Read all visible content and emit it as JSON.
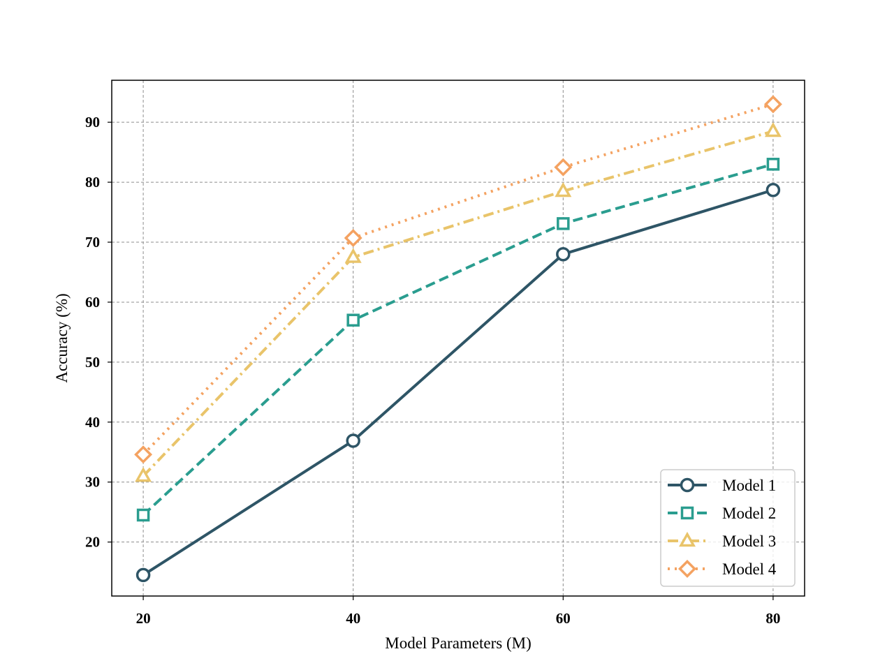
{
  "chart_data": {
    "type": "line",
    "title": "",
    "xlabel": "Model Parameters (M)",
    "ylabel": "Accuracy (%)",
    "x": [
      20,
      40,
      60,
      80
    ],
    "x_ticks": [
      "20",
      "40",
      "60",
      "80"
    ],
    "y_ticks": [
      "20",
      "30",
      "40",
      "50",
      "60",
      "70",
      "80",
      "90"
    ],
    "xlim": [
      17,
      83
    ],
    "ylim": [
      11,
      97
    ],
    "grid": true,
    "legend_position": "lower right",
    "series": [
      {
        "name": "Model 1",
        "values": [
          14.5,
          36.9,
          68.0,
          78.7
        ],
        "color": "#2e5566",
        "marker": "circle",
        "line_style": "solid"
      },
      {
        "name": "Model 2",
        "values": [
          24.5,
          57.0,
          73.1,
          83.0
        ],
        "color": "#2a9d8f",
        "marker": "square",
        "line_style": "dashed"
      },
      {
        "name": "Model 3",
        "values": [
          31.0,
          67.5,
          78.5,
          88.5
        ],
        "color": "#e9c46a",
        "marker": "triangle",
        "line_style": "dashdot"
      },
      {
        "name": "Model 4",
        "values": [
          34.6,
          70.7,
          82.5,
          93.0
        ],
        "color": "#f4a261",
        "marker": "diamond",
        "line_style": "dotted"
      }
    ]
  }
}
